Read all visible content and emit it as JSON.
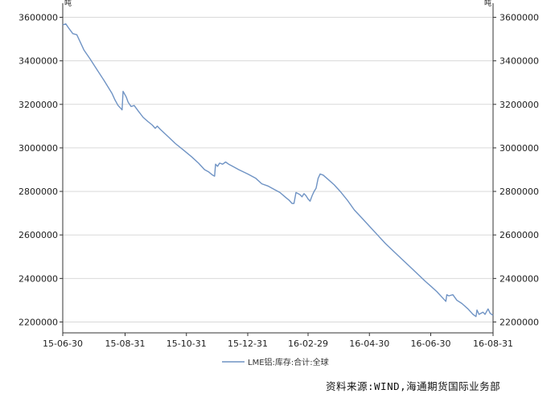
{
  "chart_data": {
    "type": "line",
    "y_unit_left": "吨",
    "y_unit_right": "吨",
    "ylim": [
      2150000,
      3650000
    ],
    "y_ticks": [
      2200000,
      2400000,
      2600000,
      2800000,
      3000000,
      3200000,
      3400000,
      3600000
    ],
    "y_tick_labels": [
      "2200000",
      "2400000",
      "2600000",
      "2800000",
      "3000000",
      "3200000",
      "3400000",
      "3600000"
    ],
    "x_range": [
      "2015-06-30",
      "2016-08-31"
    ],
    "x_tick_labels": [
      "15-06-30",
      "15-08-31",
      "15-10-31",
      "15-12-31",
      "16-02-29",
      "16-04-30",
      "16-06-30",
      "16-08-31"
    ],
    "x_ticks": [
      "2015-06-30",
      "2015-08-31",
      "2015-10-31",
      "2015-12-31",
      "2016-02-29",
      "2016-04-30",
      "2016-06-30",
      "2016-08-31"
    ],
    "grid": true,
    "legend_position": "bottom",
    "series": [
      {
        "name": "LME铝:库存:合计:全球",
        "color": "#6f93c4",
        "points": [
          [
            "2015-06-30",
            3565000
          ],
          [
            "2015-07-03",
            3570000
          ],
          [
            "2015-07-06",
            3550000
          ],
          [
            "2015-07-10",
            3525000
          ],
          [
            "2015-07-14",
            3520000
          ],
          [
            "2015-07-17",
            3490000
          ],
          [
            "2015-07-21",
            3450000
          ],
          [
            "2015-07-27",
            3410000
          ],
          [
            "2015-08-03",
            3360000
          ],
          [
            "2015-08-10",
            3310000
          ],
          [
            "2015-08-14",
            3280000
          ],
          [
            "2015-08-18",
            3250000
          ],
          [
            "2015-08-21",
            3220000
          ],
          [
            "2015-08-24",
            3195000
          ],
          [
            "2015-08-27",
            3180000
          ],
          [
            "2015-08-28",
            3175000
          ],
          [
            "2015-08-29",
            3260000
          ],
          [
            "2015-09-01",
            3235000
          ],
          [
            "2015-09-03",
            3210000
          ],
          [
            "2015-09-06",
            3190000
          ],
          [
            "2015-09-09",
            3195000
          ],
          [
            "2015-09-13",
            3170000
          ],
          [
            "2015-09-18",
            3140000
          ],
          [
            "2015-09-23",
            3120000
          ],
          [
            "2015-09-27",
            3105000
          ],
          [
            "2015-09-30",
            3090000
          ],
          [
            "2015-10-02",
            3100000
          ],
          [
            "2015-10-05",
            3085000
          ],
          [
            "2015-10-12",
            3055000
          ],
          [
            "2015-10-20",
            3020000
          ],
          [
            "2015-10-28",
            2990000
          ],
          [
            "2015-11-05",
            2960000
          ],
          [
            "2015-11-12",
            2930000
          ],
          [
            "2015-11-18",
            2900000
          ],
          [
            "2015-11-22",
            2890000
          ],
          [
            "2015-11-26",
            2875000
          ],
          [
            "2015-11-28",
            2870000
          ],
          [
            "2015-11-29",
            2925000
          ],
          [
            "2015-12-01",
            2915000
          ],
          [
            "2015-12-03",
            2930000
          ],
          [
            "2015-12-06",
            2925000
          ],
          [
            "2015-12-09",
            2935000
          ],
          [
            "2015-12-12",
            2925000
          ],
          [
            "2015-12-16",
            2915000
          ],
          [
            "2015-12-22",
            2900000
          ],
          [
            "2015-12-31",
            2880000
          ],
          [
            "2016-01-08",
            2860000
          ],
          [
            "2016-01-14",
            2835000
          ],
          [
            "2016-01-20",
            2825000
          ],
          [
            "2016-01-26",
            2810000
          ],
          [
            "2016-02-01",
            2795000
          ],
          [
            "2016-02-06",
            2775000
          ],
          [
            "2016-02-10",
            2760000
          ],
          [
            "2016-02-13",
            2745000
          ],
          [
            "2016-02-15",
            2745000
          ],
          [
            "2016-02-17",
            2795000
          ],
          [
            "2016-02-19",
            2790000
          ],
          [
            "2016-02-21",
            2785000
          ],
          [
            "2016-02-23",
            2775000
          ],
          [
            "2016-02-25",
            2790000
          ],
          [
            "2016-02-27",
            2780000
          ],
          [
            "2016-02-29",
            2765000
          ],
          [
            "2016-03-02",
            2755000
          ],
          [
            "2016-03-04",
            2780000
          ],
          [
            "2016-03-06",
            2800000
          ],
          [
            "2016-03-08",
            2815000
          ],
          [
            "2016-03-10",
            2860000
          ],
          [
            "2016-03-12",
            2880000
          ],
          [
            "2016-03-15",
            2875000
          ],
          [
            "2016-03-20",
            2855000
          ],
          [
            "2016-03-26",
            2830000
          ],
          [
            "2016-04-01",
            2800000
          ],
          [
            "2016-04-08",
            2760000
          ],
          [
            "2016-04-15",
            2715000
          ],
          [
            "2016-04-22",
            2680000
          ],
          [
            "2016-04-30",
            2640000
          ],
          [
            "2016-05-08",
            2600000
          ],
          [
            "2016-05-16",
            2560000
          ],
          [
            "2016-05-24",
            2525000
          ],
          [
            "2016-06-01",
            2490000
          ],
          [
            "2016-06-09",
            2455000
          ],
          [
            "2016-06-17",
            2420000
          ],
          [
            "2016-06-25",
            2385000
          ],
          [
            "2016-06-30",
            2365000
          ],
          [
            "2016-07-06",
            2340000
          ],
          [
            "2016-07-12",
            2310000
          ],
          [
            "2016-07-15",
            2295000
          ],
          [
            "2016-07-16",
            2325000
          ],
          [
            "2016-07-18",
            2320000
          ],
          [
            "2016-07-22",
            2325000
          ],
          [
            "2016-07-26",
            2300000
          ],
          [
            "2016-07-31",
            2285000
          ],
          [
            "2016-08-06",
            2260000
          ],
          [
            "2016-08-11",
            2235000
          ],
          [
            "2016-08-14",
            2225000
          ],
          [
            "2016-08-15",
            2255000
          ],
          [
            "2016-08-17",
            2235000
          ],
          [
            "2016-08-19",
            2240000
          ],
          [
            "2016-08-21",
            2245000
          ],
          [
            "2016-08-23",
            2235000
          ],
          [
            "2016-08-26",
            2260000
          ],
          [
            "2016-08-28",
            2240000
          ],
          [
            "2016-08-31",
            2230000
          ]
        ]
      }
    ]
  },
  "source_text": "资料来源:WIND,海通期货国际业务部"
}
